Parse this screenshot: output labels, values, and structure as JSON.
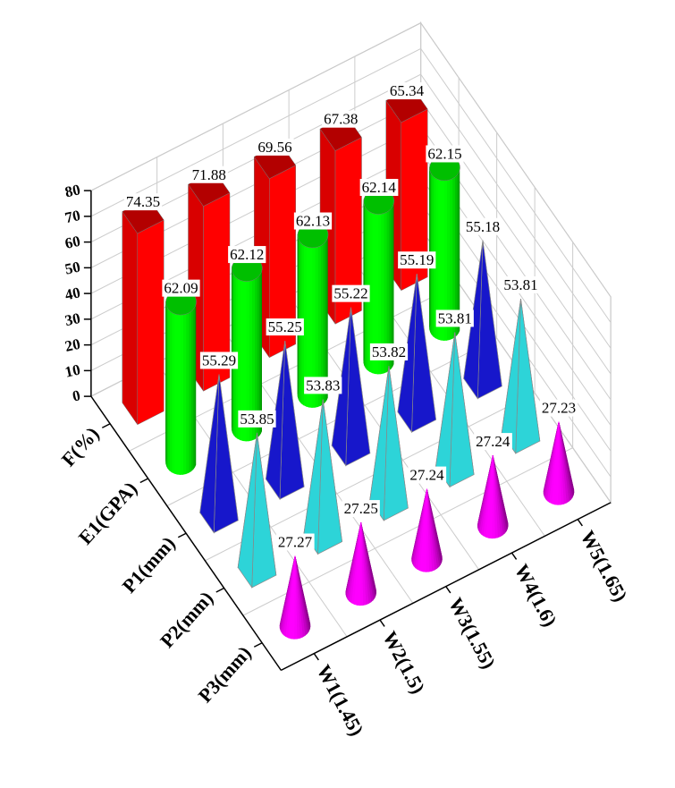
{
  "chart_data": {
    "type": "bar3d",
    "categories": [
      "W1(1.45)",
      "W2(1.5)",
      "W3(1.55)",
      "W4(1.6)",
      "W5(1.65)"
    ],
    "series": [
      {
        "name": "F(%)",
        "color": "#ff0000",
        "shape": "box",
        "values": [
          74.35,
          71.88,
          69.56,
          67.38,
          65.34
        ]
      },
      {
        "name": "E1(GPA)",
        "color": "#00ff00",
        "shape": "cylinder",
        "values": [
          62.09,
          62.12,
          62.13,
          62.14,
          62.15
        ]
      },
      {
        "name": "P1(mm)",
        "color": "#1a1ae6",
        "shape": "pyramid",
        "values": [
          55.29,
          55.25,
          55.22,
          55.19,
          55.18
        ]
      },
      {
        "name": "P2(mm)",
        "color": "#33f0f5",
        "shape": "pyramid",
        "values": [
          53.85,
          53.83,
          53.82,
          53.81,
          53.81
        ]
      },
      {
        "name": "P3(mm)",
        "color": "#ff00ff",
        "shape": "cone",
        "values": [
          27.27,
          27.25,
          27.24,
          27.24,
          27.23
        ]
      }
    ],
    "zlim": [
      0,
      80
    ],
    "zticks": [
      0,
      10,
      20,
      30,
      40,
      50,
      60,
      70,
      80
    ],
    "grid": true
  }
}
